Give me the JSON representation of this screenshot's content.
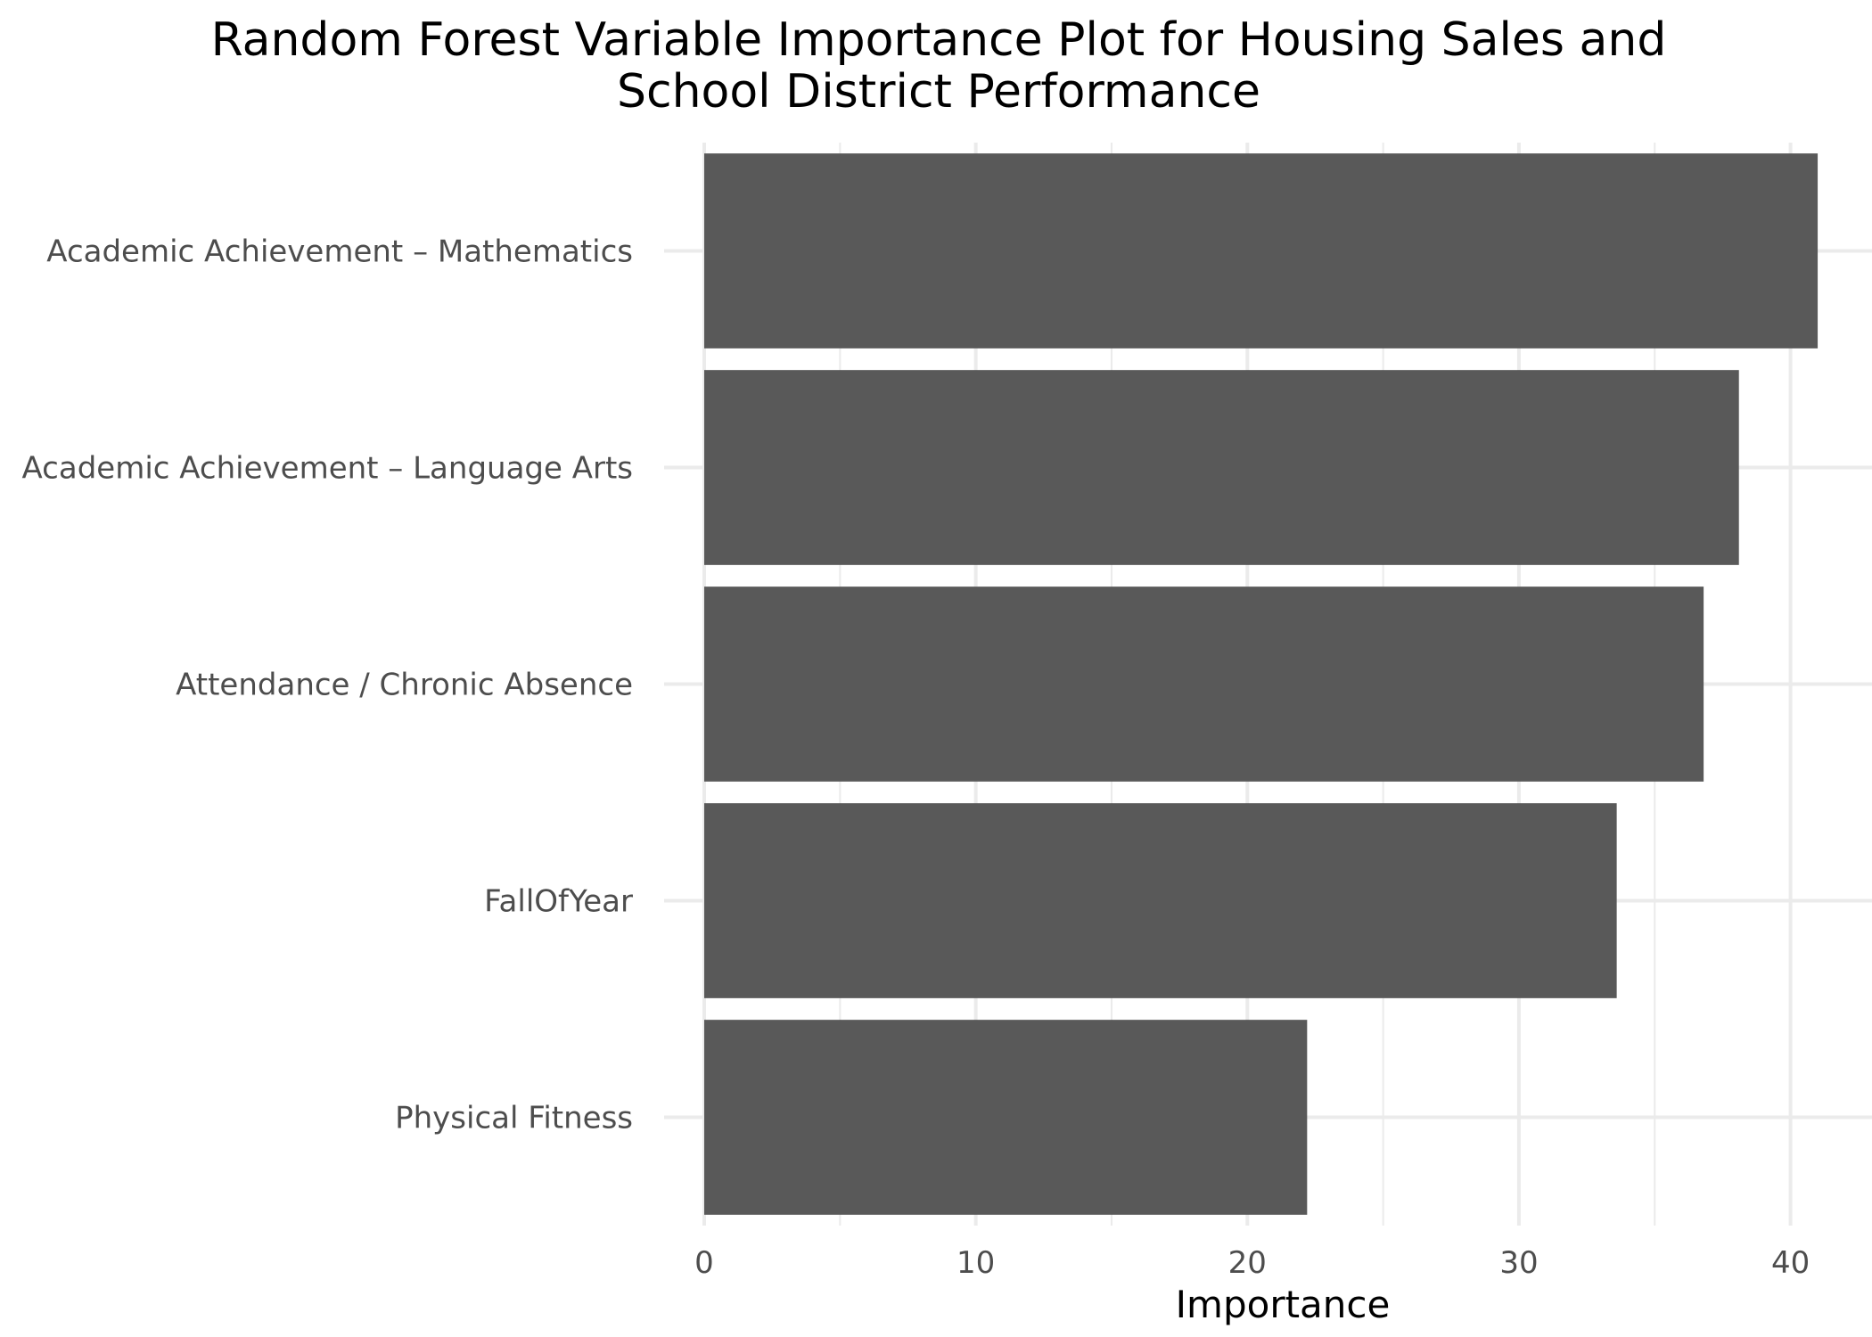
{
  "chart_data": {
    "type": "bar",
    "orientation": "horizontal",
    "title_lines": [
      "Random Forest Variable Importance Plot for Housing Sales and",
      "School District Performance"
    ],
    "xlabel": "Importance",
    "ylabel": "",
    "xlim": [
      0,
      43
    ],
    "x_ticks": [
      0,
      10,
      20,
      30,
      40
    ],
    "grid": true,
    "legend": "none",
    "bar_color": "#595959",
    "grid_color": "#ebebeb",
    "categories": [
      "Academic Achievement – Mathematics",
      "Academic Achievement – Language Arts",
      "Attendance / Chronic Absence",
      "FallOfYear",
      "Physical Fitness"
    ],
    "values": [
      41.0,
      38.1,
      36.8,
      33.6,
      22.2
    ]
  }
}
